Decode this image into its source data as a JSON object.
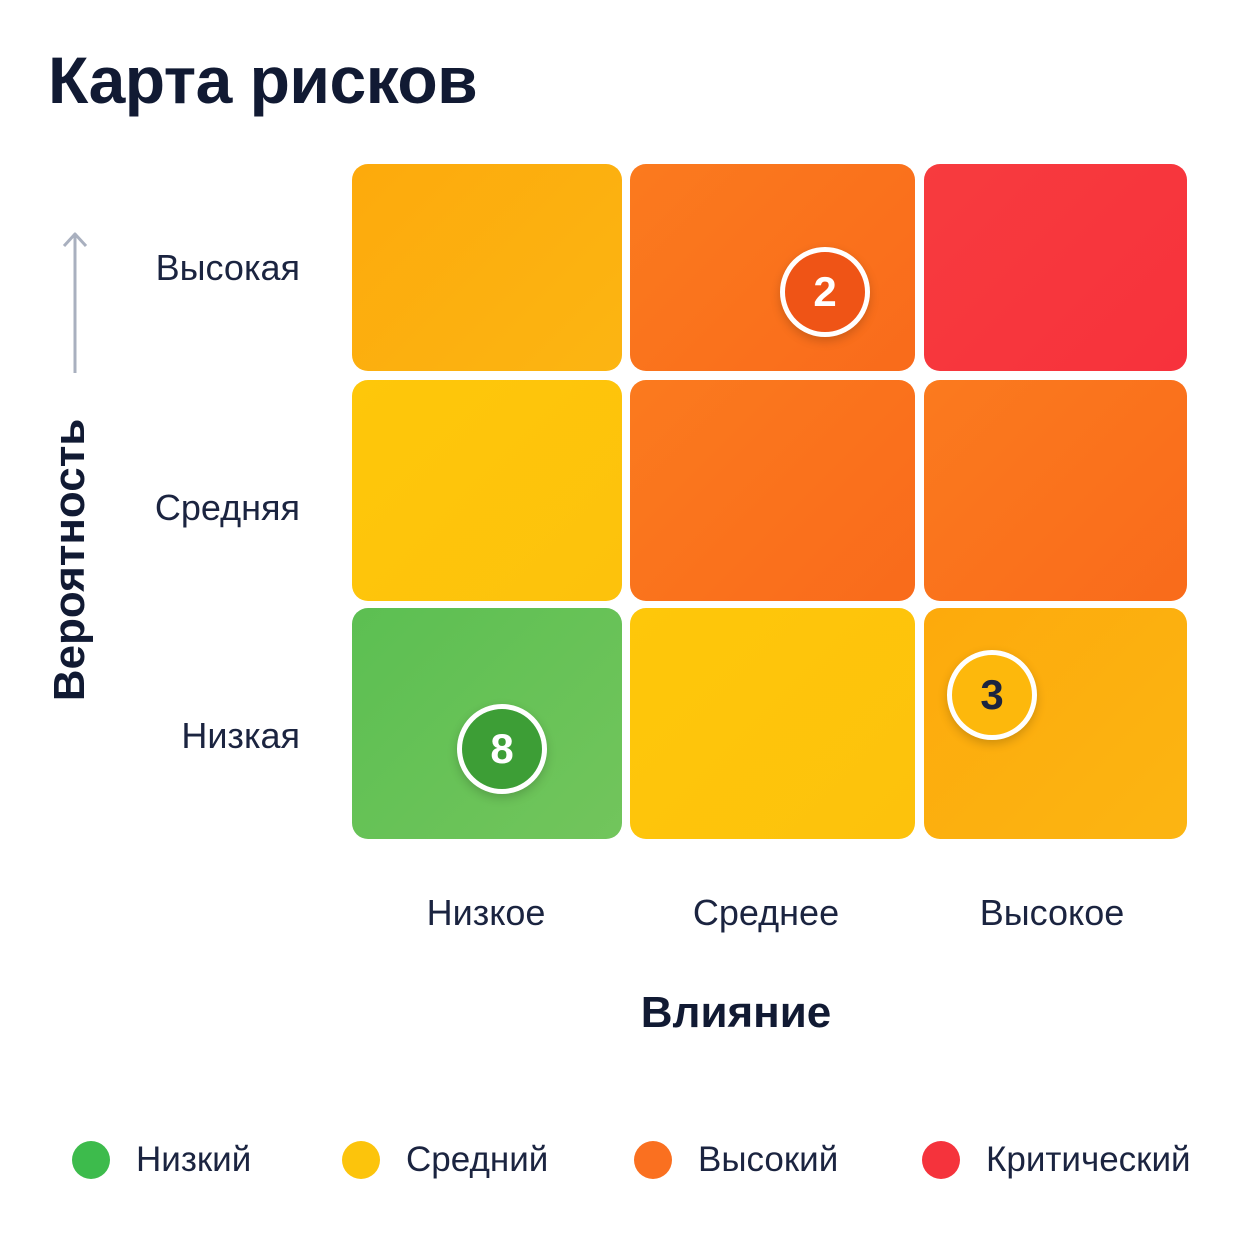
{
  "title": "Карта рисков",
  "chart_data": {
    "type": "heatmap",
    "ylabel": "Вероятность",
    "xlabel": "Влияние",
    "rows": [
      "Высокая",
      "Средняя",
      "Низкая"
    ],
    "columns": [
      "Низкое",
      "Среднее",
      "Высокое"
    ],
    "levels": [
      [
        "Средний",
        "Высокий",
        "Критический"
      ],
      [
        "Средний",
        "Высокий",
        "Высокий"
      ],
      [
        "Низкий",
        "Средний",
        "Средний"
      ]
    ],
    "markers": [
      {
        "row": "Высокая",
        "column": "Среднее",
        "value": "2",
        "level": "Высокий"
      },
      {
        "row": "Низкая",
        "column": "Низкое",
        "value": "8",
        "level": "Низкий"
      },
      {
        "row": "Низкая",
        "column": "Высокое",
        "value": "3",
        "level": "Средний"
      }
    ],
    "legend": [
      {
        "label": "Низкий",
        "color": "#3dbb4c"
      },
      {
        "label": "Средний",
        "color": "#fcc40c"
      },
      {
        "label": "Высокий",
        "color": "#fa7020"
      },
      {
        "label": "Критический",
        "color": "#f5333c"
      }
    ]
  }
}
